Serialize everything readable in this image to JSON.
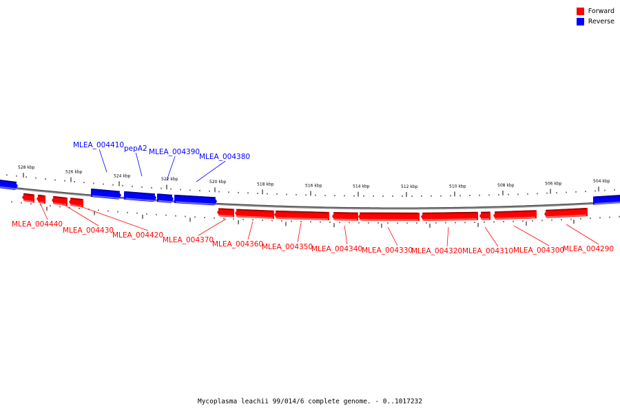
{
  "legend": {
    "forward_label": "Forward",
    "reverse_label": "Reverse",
    "forward_color": "#ff0000",
    "reverse_color": "#0000ff"
  },
  "caption": "Mycoplasma leachii 99/014/6 complete genome. - 0..1017232",
  "axis": {
    "tick_labels": [
      "528 kbp",
      "526 kbp",
      "524 kbp",
      "522 kbp",
      "520 kbp",
      "518 kbp",
      "516 kbp",
      "514 kbp",
      "512 kbp",
      "510 kbp",
      "508 kbp",
      "506 kbp",
      "504 kbp"
    ]
  },
  "genes": [
    {
      "label": "",
      "strand": "reverse"
    },
    {
      "label": "MLEA_004410",
      "strand": "reverse"
    },
    {
      "label": "pepA2",
      "strand": "reverse"
    },
    {
      "label": "MLEA_004390",
      "strand": "reverse"
    },
    {
      "label": "MLEA_004380",
      "strand": "reverse"
    },
    {
      "label": "",
      "strand": "reverse"
    },
    {
      "label": "MLEA_004440",
      "strand": "forward"
    },
    {
      "label": "",
      "strand": "forward"
    },
    {
      "label": "MLEA_004430",
      "strand": "forward"
    },
    {
      "label": "MLEA_004420",
      "strand": "forward"
    },
    {
      "label": "MLEA_004370",
      "strand": "forward"
    },
    {
      "label": "MLEA_004360",
      "strand": "forward"
    },
    {
      "label": "MLEA_004350",
      "strand": "forward"
    },
    {
      "label": "MLEA_004340",
      "strand": "forward"
    },
    {
      "label": "MLEA_004330",
      "strand": "forward"
    },
    {
      "label": "MLEA_004320",
      "strand": "forward"
    },
    {
      "label": "MLEA_004310",
      "strand": "forward"
    },
    {
      "label": "MLEA_004300",
      "strand": "forward"
    },
    {
      "label": "MLEA_004290",
      "strand": "forward"
    }
  ]
}
